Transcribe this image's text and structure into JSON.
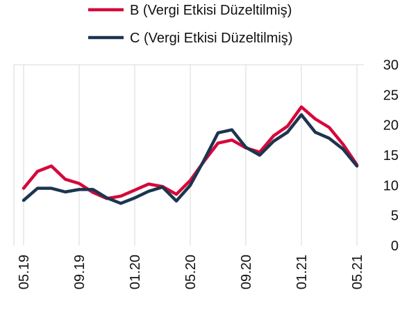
{
  "chart_data": {
    "type": "line",
    "x": [
      "05.19",
      "06.19",
      "07.19",
      "08.19",
      "09.19",
      "10.19",
      "11.19",
      "12.19",
      "01.20",
      "02.20",
      "03.20",
      "04.20",
      "05.20",
      "06.20",
      "07.20",
      "08.20",
      "09.20",
      "10.20",
      "11.20",
      "12.20",
      "01.21",
      "02.21",
      "03.21",
      "04.21",
      "05.21"
    ],
    "x_tick_labels": [
      "05.19",
      "09.19",
      "01.20",
      "05.20",
      "09.20",
      "01.21",
      "05.21"
    ],
    "series": [
      {
        "name": "B (Vergi Etkisi Düzeltilmiş)",
        "color": "#d6083b",
        "values": [
          9.5,
          12.3,
          13.2,
          11.0,
          10.3,
          8.8,
          7.8,
          8.2,
          9.2,
          10.2,
          9.8,
          8.5,
          10.8,
          14.0,
          17.0,
          17.5,
          16.2,
          15.5,
          18.2,
          19.8,
          23.0,
          21.0,
          19.6,
          16.8,
          13.4
        ]
      },
      {
        "name": "C (Vergi Etkisi Düzeltilmiş)",
        "color": "#1c3550",
        "values": [
          7.5,
          9.5,
          9.5,
          8.9,
          9.3,
          9.3,
          7.9,
          7.0,
          7.9,
          9.0,
          9.7,
          7.4,
          10.0,
          14.2,
          18.7,
          19.2,
          16.3,
          15.0,
          17.3,
          18.8,
          21.7,
          18.8,
          17.8,
          16.0,
          13.2
        ]
      }
    ],
    "y_ticks": [
      0,
      5,
      10,
      15,
      20,
      25,
      30
    ],
    "ylim": [
      0,
      30
    ],
    "grid": "vertical",
    "legend_position": "top",
    "title": "",
    "xlabel": "",
    "ylabel": ""
  }
}
